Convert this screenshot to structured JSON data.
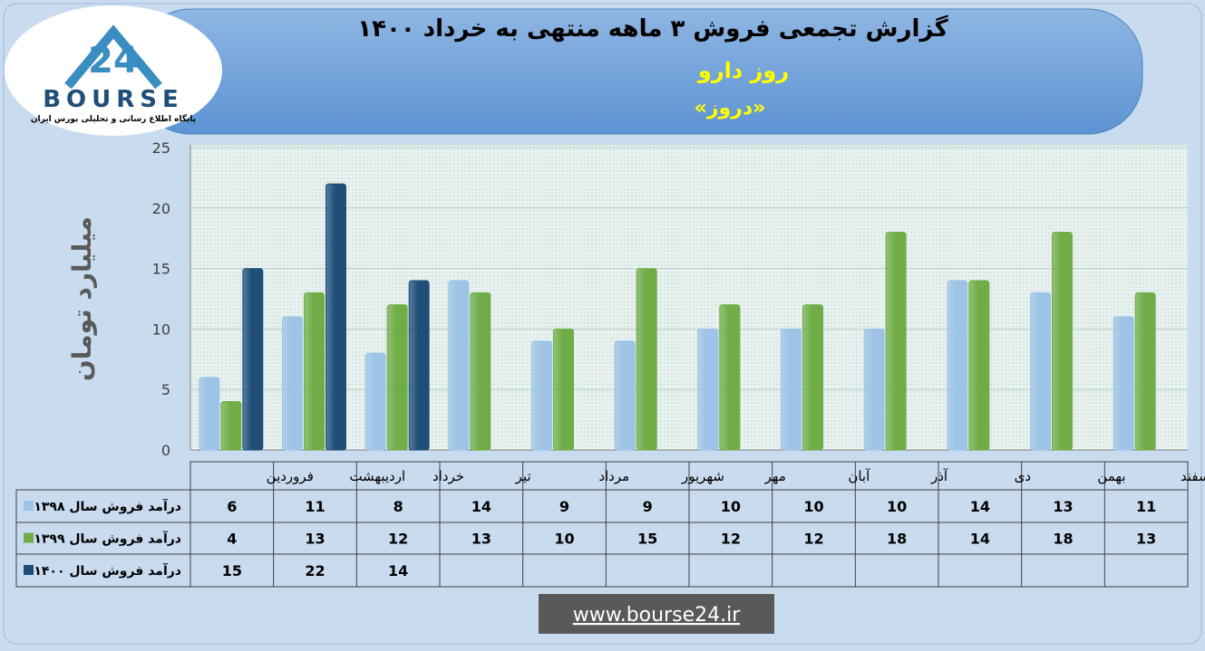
{
  "logo": {
    "mark": "24",
    "name": "BOURSE",
    "tagline": "پایگاه اطلاع رسانی و تحلیلی بورس ایران"
  },
  "chart_data": {
    "type": "bar",
    "title": "گزارش تجمعی فروش ۳ ماهه منتهی به خرداد ۱۴۰۰",
    "subtitle": "روز دارو",
    "symbol": "«دروز»",
    "y_label": "میلیارد تومان",
    "categories": [
      "فروردین",
      "اردیبهشت",
      "خرداد",
      "تیر",
      "مرداد",
      "شهریور",
      "مهر",
      "آبان",
      "آذر",
      "دی",
      "بهمن",
      "اسفند"
    ],
    "series": [
      {
        "name": "درآمد فروش سال ۱۳۹۸",
        "color": "#9dc3e6",
        "values": [
          6,
          11,
          8,
          14,
          9,
          9,
          10,
          10,
          10,
          14,
          13,
          11
        ]
      },
      {
        "name": "درآمد فروش سال ۱۳۹۹",
        "color": "#70ad47",
        "values": [
          4,
          13,
          12,
          13,
          10,
          15,
          12,
          12,
          18,
          14,
          18,
          13
        ]
      },
      {
        "name": "درآمد فروش سال ۱۴۰۰",
        "color": "#1f4e79",
        "values": [
          15,
          22,
          14,
          null,
          null,
          null,
          null,
          null,
          null,
          null,
          null,
          null
        ]
      }
    ],
    "ylim": [
      0,
      25
    ],
    "yticks": [
      0,
      5,
      10,
      15,
      20,
      25
    ],
    "grid": true
  },
  "footer": {
    "website": "www.bourse24.ir"
  }
}
